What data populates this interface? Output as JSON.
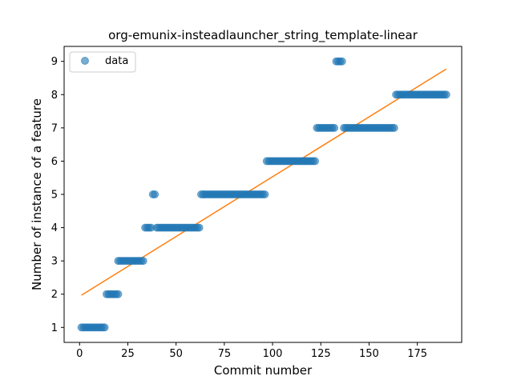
{
  "chart_data": {
    "type": "scatter",
    "title": "org-emunix-insteadlauncher_string_template-linear",
    "xlabel": "Commit number",
    "ylabel": "Number of instance of a feature",
    "xlim": [
      -8,
      198
    ],
    "ylim": [
      0.55,
      9.45
    ],
    "xticks": [
      0,
      25,
      50,
      75,
      100,
      125,
      150,
      175
    ],
    "yticks": [
      1,
      2,
      3,
      4,
      5,
      6,
      7,
      8,
      9
    ],
    "grid": false,
    "legend": {
      "entries": [
        "data"
      ],
      "position": "upper-left"
    },
    "colors": {
      "data": "#1f77b4",
      "fit": "#ff7f0e"
    },
    "series": [
      {
        "name": "data",
        "kind": "scatter",
        "points": [
          [
            1,
            1
          ],
          [
            2,
            1
          ],
          [
            3,
            1
          ],
          [
            4,
            1
          ],
          [
            5,
            1
          ],
          [
            6,
            1
          ],
          [
            7,
            1
          ],
          [
            8,
            1
          ],
          [
            9,
            1
          ],
          [
            10,
            1
          ],
          [
            11,
            1
          ],
          [
            12,
            1
          ],
          [
            13,
            1
          ],
          [
            14,
            2
          ],
          [
            15,
            2
          ],
          [
            16,
            2
          ],
          [
            17,
            2
          ],
          [
            18,
            2
          ],
          [
            19,
            2
          ],
          [
            20,
            2
          ],
          [
            20,
            3
          ],
          [
            21,
            3
          ],
          [
            22,
            3
          ],
          [
            23,
            3
          ],
          [
            24,
            3
          ],
          [
            25,
            3
          ],
          [
            26,
            3
          ],
          [
            27,
            3
          ],
          [
            28,
            3
          ],
          [
            29,
            3
          ],
          [
            30,
            3
          ],
          [
            31,
            3
          ],
          [
            32,
            3
          ],
          [
            33,
            3
          ],
          [
            34,
            4
          ],
          [
            35,
            4
          ],
          [
            36,
            4
          ],
          [
            37,
            4
          ],
          [
            38,
            5
          ],
          [
            39,
            5
          ],
          [
            40,
            4
          ],
          [
            41,
            4
          ],
          [
            42,
            4
          ],
          [
            43,
            4
          ],
          [
            44,
            4
          ],
          [
            45,
            4
          ],
          [
            46,
            4
          ],
          [
            47,
            4
          ],
          [
            48,
            4
          ],
          [
            49,
            4
          ],
          [
            50,
            4
          ],
          [
            51,
            4
          ],
          [
            52,
            4
          ],
          [
            53,
            4
          ],
          [
            54,
            4
          ],
          [
            55,
            4
          ],
          [
            56,
            4
          ],
          [
            57,
            4
          ],
          [
            58,
            4
          ],
          [
            59,
            4
          ],
          [
            60,
            4
          ],
          [
            61,
            4
          ],
          [
            62,
            4
          ],
          [
            63,
            5
          ],
          [
            64,
            5
          ],
          [
            65,
            5
          ],
          [
            66,
            5
          ],
          [
            67,
            5
          ],
          [
            68,
            5
          ],
          [
            69,
            5
          ],
          [
            70,
            5
          ],
          [
            71,
            5
          ],
          [
            72,
            5
          ],
          [
            73,
            5
          ],
          [
            74,
            5
          ],
          [
            75,
            5
          ],
          [
            76,
            5
          ],
          [
            77,
            5
          ],
          [
            78,
            5
          ],
          [
            79,
            5
          ],
          [
            80,
            5
          ],
          [
            81,
            5
          ],
          [
            82,
            5
          ],
          [
            83,
            5
          ],
          [
            84,
            5
          ],
          [
            85,
            5
          ],
          [
            86,
            5
          ],
          [
            87,
            5
          ],
          [
            88,
            5
          ],
          [
            89,
            5
          ],
          [
            90,
            5
          ],
          [
            91,
            5
          ],
          [
            92,
            5
          ],
          [
            93,
            5
          ],
          [
            94,
            5
          ],
          [
            95,
            5
          ],
          [
            96,
            5
          ],
          [
            97,
            6
          ],
          [
            98,
            6
          ],
          [
            99,
            6
          ],
          [
            100,
            6
          ],
          [
            101,
            6
          ],
          [
            102,
            6
          ],
          [
            103,
            6
          ],
          [
            104,
            6
          ],
          [
            105,
            6
          ],
          [
            106,
            6
          ],
          [
            107,
            6
          ],
          [
            108,
            6
          ],
          [
            109,
            6
          ],
          [
            110,
            6
          ],
          [
            111,
            6
          ],
          [
            112,
            6
          ],
          [
            113,
            6
          ],
          [
            114,
            6
          ],
          [
            115,
            6
          ],
          [
            116,
            6
          ],
          [
            117,
            6
          ],
          [
            118,
            6
          ],
          [
            119,
            6
          ],
          [
            120,
            6
          ],
          [
            121,
            6
          ],
          [
            122,
            6
          ],
          [
            123,
            7
          ],
          [
            124,
            7
          ],
          [
            125,
            7
          ],
          [
            126,
            7
          ],
          [
            127,
            7
          ],
          [
            128,
            7
          ],
          [
            129,
            7
          ],
          [
            130,
            7
          ],
          [
            131,
            7
          ],
          [
            132,
            7
          ],
          [
            133,
            9
          ],
          [
            134,
            9
          ],
          [
            135,
            9
          ],
          [
            136,
            9
          ],
          [
            137,
            7
          ],
          [
            138,
            7
          ],
          [
            139,
            7
          ],
          [
            140,
            7
          ],
          [
            141,
            7
          ],
          [
            142,
            7
          ],
          [
            143,
            7
          ],
          [
            144,
            7
          ],
          [
            145,
            7
          ],
          [
            146,
            7
          ],
          [
            147,
            7
          ],
          [
            148,
            7
          ],
          [
            149,
            7
          ],
          [
            150,
            7
          ],
          [
            151,
            7
          ],
          [
            152,
            7
          ],
          [
            153,
            7
          ],
          [
            154,
            7
          ],
          [
            155,
            7
          ],
          [
            156,
            7
          ],
          [
            157,
            7
          ],
          [
            158,
            7
          ],
          [
            159,
            7
          ],
          [
            160,
            7
          ],
          [
            161,
            7
          ],
          [
            162,
            7
          ],
          [
            163,
            7
          ],
          [
            164,
            8
          ],
          [
            165,
            8
          ],
          [
            166,
            8
          ],
          [
            167,
            8
          ],
          [
            168,
            8
          ],
          [
            169,
            8
          ],
          [
            170,
            8
          ],
          [
            171,
            8
          ],
          [
            172,
            8
          ],
          [
            173,
            8
          ],
          [
            174,
            8
          ],
          [
            175,
            8
          ],
          [
            176,
            8
          ],
          [
            177,
            8
          ],
          [
            178,
            8
          ],
          [
            179,
            8
          ],
          [
            180,
            8
          ],
          [
            181,
            8
          ],
          [
            182,
            8
          ],
          [
            183,
            8
          ],
          [
            184,
            8
          ],
          [
            185,
            8
          ],
          [
            186,
            8
          ],
          [
            187,
            8
          ],
          [
            188,
            8
          ],
          [
            189,
            8
          ],
          [
            190,
            8
          ]
        ]
      },
      {
        "kind": "line",
        "points": [
          [
            1,
            1.97
          ],
          [
            190,
            8.77
          ]
        ]
      }
    ]
  }
}
